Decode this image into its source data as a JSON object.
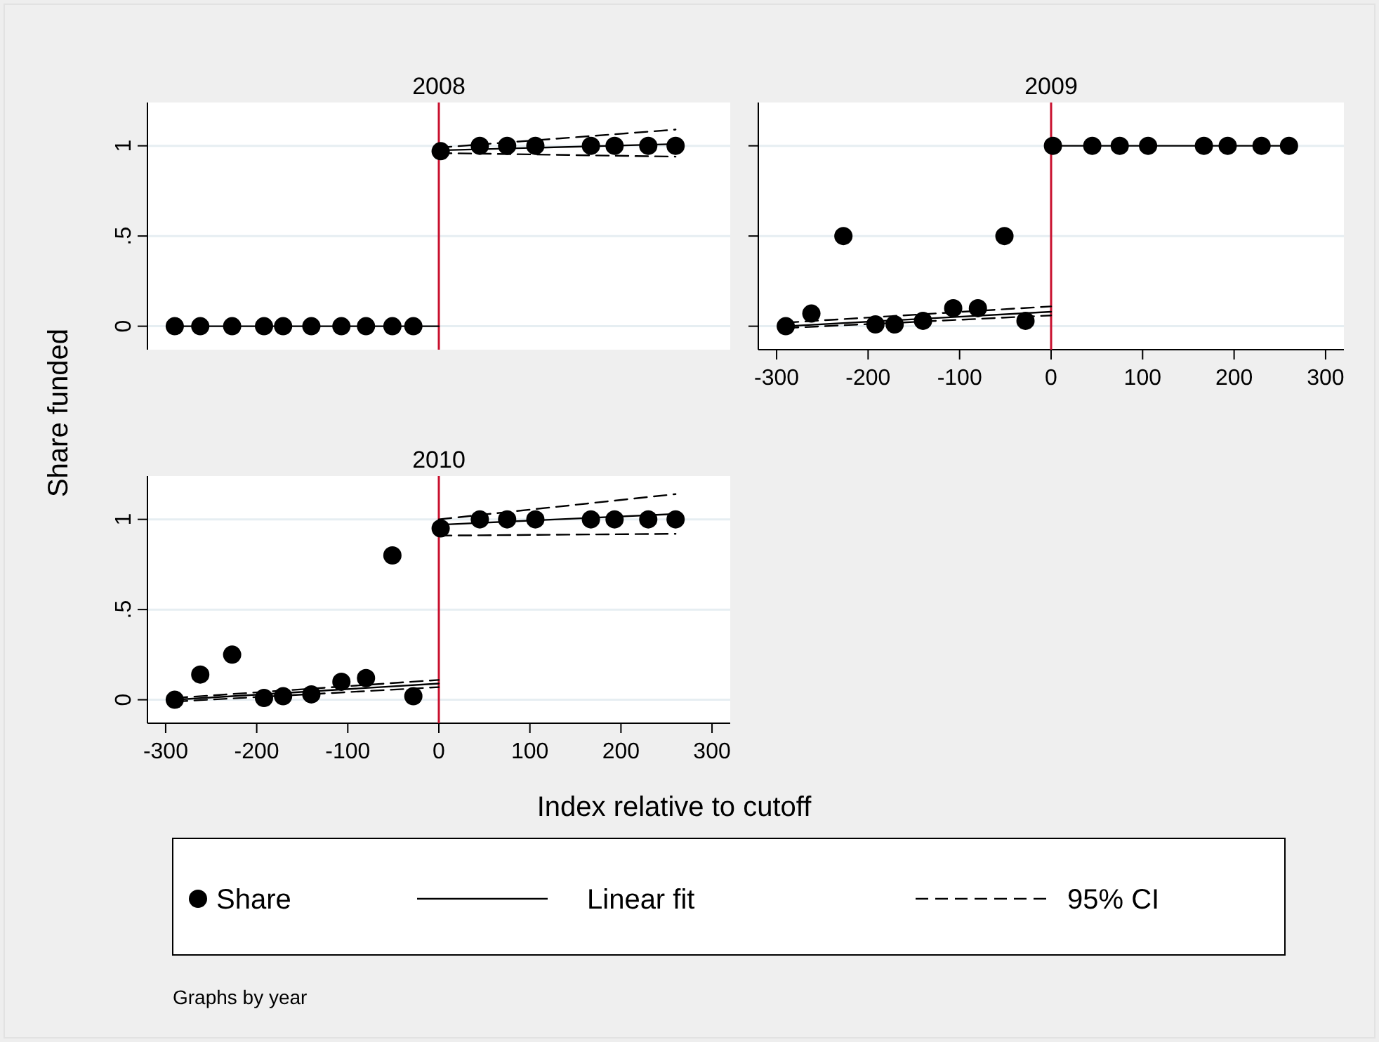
{
  "chart_data": [
    {
      "type": "scatter",
      "title": "2008",
      "xlim": [
        -320,
        320
      ],
      "ylim": [
        -0.13,
        1.24
      ],
      "yticks": [
        {
          "value": 0,
          "label": "0"
        },
        {
          "value": 0.5,
          "label": ".5"
        },
        {
          "value": 1,
          "label": "1"
        }
      ],
      "grid": "y",
      "tick_labels": "y",
      "ref_lines": [
        {
          "axis": "x",
          "value": 0,
          "color": "#c8102e"
        }
      ],
      "x": [
        -290,
        -262,
        -227,
        -192,
        -171,
        -140,
        -107,
        -80,
        -51,
        -28,
        2,
        45,
        75,
        106,
        167,
        193,
        230,
        260
      ],
      "series": [
        {
          "marker": "circle",
          "color": "#000000",
          "values": [
            0,
            0,
            0,
            0,
            0,
            0,
            0,
            0,
            0,
            0,
            0.97,
            1,
            1,
            1,
            1,
            1,
            1,
            1
          ]
        },
        {
          "type": "line",
          "line_style": "solid",
          "color": "#000000",
          "x": [
            -290,
            0
          ],
          "values": [
            0,
            0
          ]
        },
        {
          "type": "line",
          "line_style": "solid",
          "color": "#000000",
          "x": [
            0,
            260
          ],
          "values": [
            0.975,
            1.01
          ]
        },
        {
          "type": "line",
          "line_style": "dashed",
          "color": "#000000",
          "x": [
            0,
            260
          ],
          "values": [
            0.99,
            1.09
          ]
        },
        {
          "type": "line",
          "line_style": "dashed",
          "color": "#000000",
          "x": [
            0,
            260
          ],
          "values": [
            0.96,
            0.94
          ]
        }
      ]
    },
    {
      "type": "scatter",
      "title": "2009",
      "xlim": [
        -320,
        320
      ],
      "ylim": [
        -0.13,
        1.24
      ],
      "xticks": [
        -300,
        -200,
        -100,
        0,
        100,
        200,
        300
      ],
      "yticks": [
        {
          "value": 0,
          "label": null
        },
        {
          "value": 0.5,
          "label": null
        },
        {
          "value": 1,
          "label": null
        }
      ],
      "grid": "y",
      "tick_labels": "x",
      "ref_lines": [
        {
          "axis": "x",
          "value": 0,
          "color": "#c8102e"
        }
      ],
      "x": [
        -290,
        -262,
        -227,
        -192,
        -171,
        -140,
        -107,
        -80,
        -51,
        -28,
        2,
        45,
        75,
        106,
        167,
        193,
        230,
        260
      ],
      "series": [
        {
          "marker": "circle",
          "color": "#000000",
          "values": [
            0,
            0.07,
            0.5,
            0.01,
            0.01,
            0.03,
            0.1,
            0.1,
            0.5,
            0.03,
            1,
            1,
            1,
            1,
            1,
            1,
            1,
            1
          ]
        },
        {
          "type": "line",
          "line_style": "solid",
          "color": "#000000",
          "x": [
            -290,
            0
          ],
          "values": [
            0,
            0.08
          ]
        },
        {
          "type": "line",
          "line_style": "solid",
          "color": "#000000",
          "x": [
            0,
            260
          ],
          "values": [
            1,
            1
          ]
        },
        {
          "type": "line",
          "line_style": "dashed",
          "color": "#000000",
          "x": [
            -290,
            0
          ],
          "values": [
            0.02,
            0.11
          ]
        },
        {
          "type": "line",
          "line_style": "dashed",
          "color": "#000000",
          "x": [
            -290,
            0
          ],
          "values": [
            -0.01,
            0.06
          ]
        }
      ]
    },
    {
      "type": "scatter",
      "title": "2010",
      "ylabel": "Share funded",
      "xlabel": "Index relative to cutoff",
      "xlim": [
        -320,
        320
      ],
      "ylim": [
        -0.13,
        1.24
      ],
      "xticks": [
        -300,
        -200,
        -100,
        0,
        100,
        200,
        300
      ],
      "yticks": [
        0,
        {
          "value": 0.5,
          "label": ".5"
        },
        1
      ],
      "grid": "y",
      "legend": "bottom",
      "annotations": [
        "Graphs by year"
      ],
      "ref_lines": [
        {
          "axis": "x",
          "value": 0,
          "color": "#c8102e"
        }
      ],
      "x": [
        -290,
        -262,
        -227,
        -192,
        -171,
        -140,
        -107,
        -80,
        -51,
        -28,
        2,
        45,
        75,
        106,
        167,
        193,
        230,
        260
      ],
      "series": [
        {
          "name": "Share",
          "marker": "circle",
          "color": "#000000",
          "values": [
            0,
            0.14,
            0.25,
            0.01,
            0.02,
            0.03,
            0.1,
            0.12,
            0.8,
            0.02,
            0.95,
            1,
            1,
            1,
            1,
            1,
            1,
            1
          ]
        },
        {
          "name": "Linear fit",
          "type": "line",
          "line_style": "solid",
          "color": "#000000",
          "x": [
            -290,
            0
          ],
          "values": [
            0,
            0.09
          ]
        },
        {
          "type": "line",
          "line_style": "solid",
          "color": "#000000",
          "x": [
            0,
            260
          ],
          "values": [
            0.97,
            1.03
          ]
        },
        {
          "name": "95% CI",
          "type": "line",
          "line_style": "dashed",
          "color": "#000000",
          "x": [
            -290,
            0
          ],
          "values": [
            0.01,
            0.11
          ]
        },
        {
          "type": "line",
          "line_style": "dashed",
          "color": "#000000",
          "x": [
            -290,
            0
          ],
          "values": [
            -0.01,
            0.07
          ]
        },
        {
          "type": "line",
          "line_style": "dashed",
          "color": "#000000",
          "x": [
            0,
            260
          ],
          "values": [
            1.0,
            1.14
          ]
        },
        {
          "type": "line",
          "line_style": "dashed",
          "color": "#000000",
          "x": [
            0,
            260
          ],
          "values": [
            0.91,
            0.92
          ]
        }
      ]
    }
  ]
}
